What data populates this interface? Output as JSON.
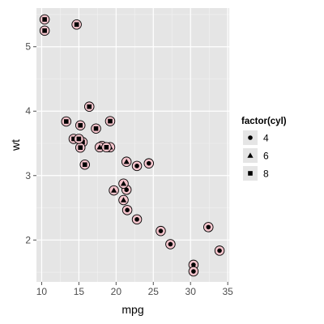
{
  "chart_data": {
    "type": "scatter",
    "xlabel": "mpg",
    "ylabel": "wt",
    "xlim": [
      9.3,
      35.2
    ],
    "ylim": [
      1.35,
      5.6
    ],
    "x_ticks": [
      10,
      15,
      20,
      25,
      30,
      35
    ],
    "y_ticks": [
      2,
      3,
      4,
      5
    ],
    "grid": true,
    "legend": {
      "title": "factor(cyl)",
      "placement": "right",
      "entries": [
        {
          "label": "4",
          "shape": "circle"
        },
        {
          "label": "6",
          "shape": "triangle"
        },
        {
          "label": "8",
          "shape": "square"
        }
      ]
    },
    "marker_colors": {
      "halo_fill": "#f4c4cc",
      "halo_stroke": "#000000",
      "glyph": "#000000",
      "panel": "#e5e5e5",
      "grid": "#ffffff"
    },
    "series": [
      {
        "name": "4",
        "shape": "circle",
        "points": [
          [
            22.8,
            2.32
          ],
          [
            24.4,
            3.19
          ],
          [
            22.8,
            3.15
          ],
          [
            32.4,
            2.2
          ],
          [
            30.4,
            1.615
          ],
          [
            33.9,
            1.835
          ],
          [
            21.5,
            2.465
          ],
          [
            27.3,
            1.935
          ],
          [
            26.0,
            2.14
          ],
          [
            30.4,
            1.513
          ],
          [
            21.4,
            2.78
          ]
        ]
      },
      {
        "name": "6",
        "shape": "triangle",
        "points": [
          [
            21.0,
            2.62
          ],
          [
            21.0,
            2.875
          ],
          [
            21.4,
            3.215
          ],
          [
            18.1,
            3.46
          ],
          [
            19.2,
            3.44
          ],
          [
            17.8,
            3.44
          ],
          [
            19.7,
            2.77
          ]
        ]
      },
      {
        "name": "8",
        "shape": "square",
        "points": [
          [
            18.7,
            3.44
          ],
          [
            14.3,
            3.57
          ],
          [
            16.4,
            4.07
          ],
          [
            17.3,
            3.73
          ],
          [
            15.2,
            3.78
          ],
          [
            10.4,
            5.25
          ],
          [
            10.4,
            5.424
          ],
          [
            14.7,
            5.345
          ],
          [
            15.5,
            3.52
          ],
          [
            15.2,
            3.435
          ],
          [
            13.3,
            3.84
          ],
          [
            19.2,
            3.845
          ],
          [
            15.8,
            3.17
          ],
          [
            15.0,
            3.57
          ]
        ]
      }
    ]
  }
}
